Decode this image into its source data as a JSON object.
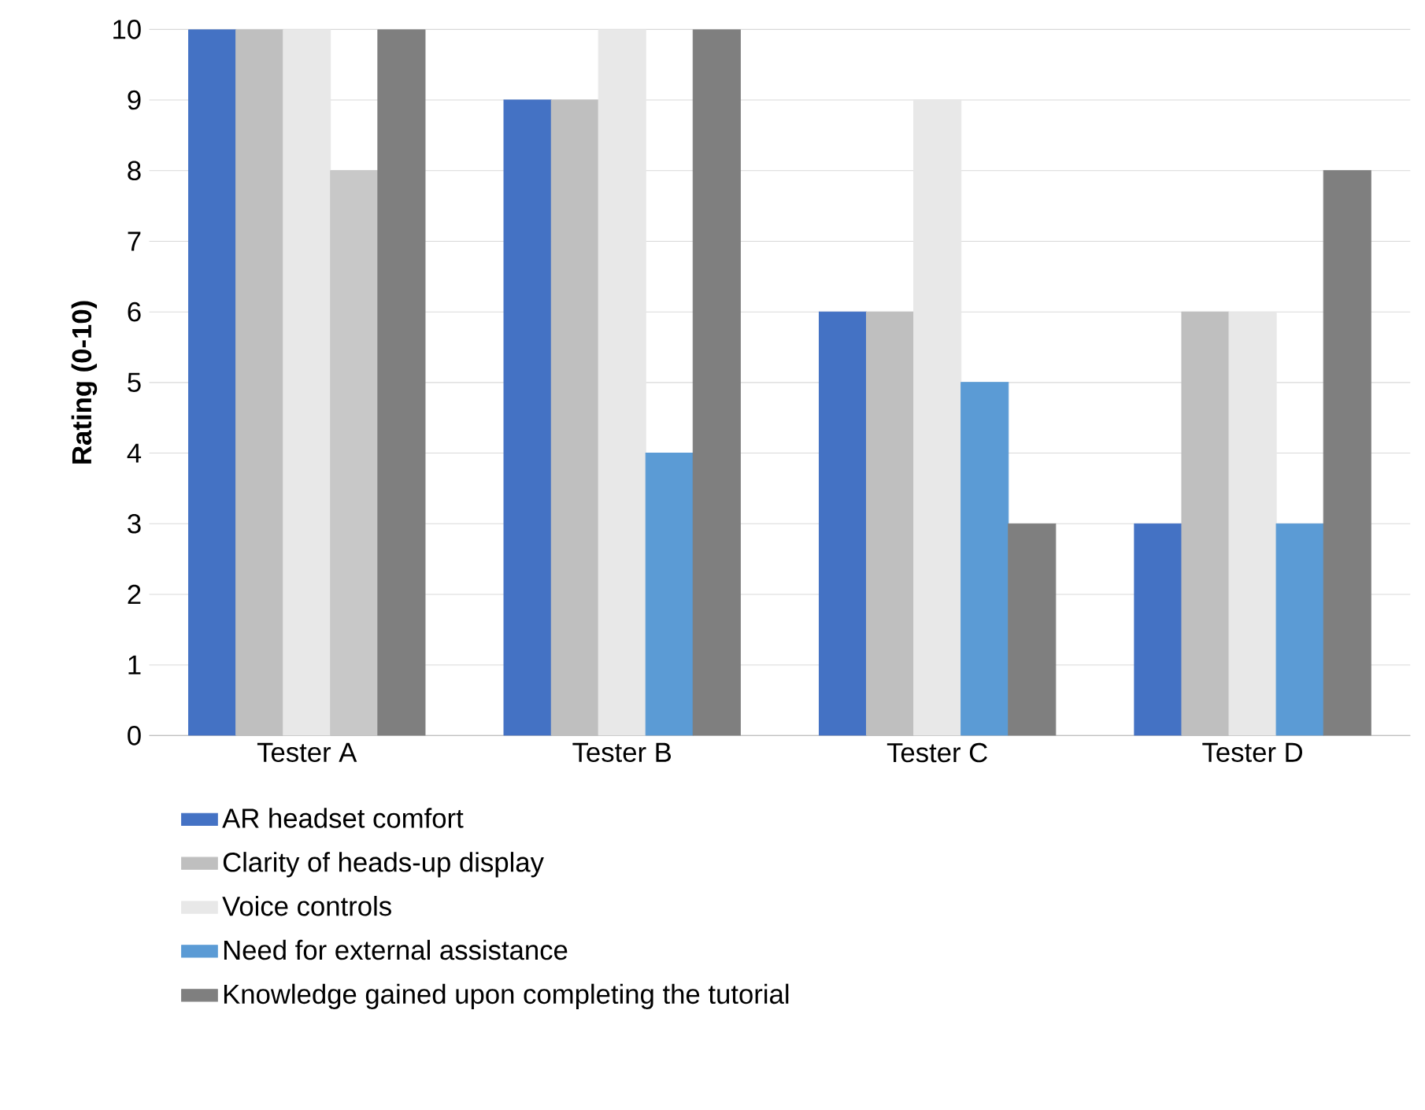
{
  "chart_data": {
    "type": "bar",
    "ylabel": "Rating (0-10)",
    "categories": [
      "Tester A",
      "Tester B",
      "Tester C",
      "Tester D"
    ],
    "series": [
      {
        "name": "AR headset comfort",
        "color": "#4472c4",
        "values": [
          10,
          9,
          6,
          3
        ]
      },
      {
        "name": "Clarity of heads-up display",
        "color": "#bfbfbf",
        "values": [
          10,
          9,
          6,
          6
        ]
      },
      {
        "name": "Voice controls",
        "color": "#e8e8e8",
        "values": [
          10,
          10,
          9,
          6
        ]
      },
      {
        "name": "Need for external assistance",
        "color": "#5b9bd5",
        "colors": [
          "#c8c8c8",
          "#5b9bd5",
          "#5b9bd5",
          "#5b9bd5"
        ],
        "values": [
          8,
          4,
          5,
          3
        ]
      },
      {
        "name": "Knowledge gained upon completing the tutorial",
        "color": "#7f7f7f",
        "values": [
          10,
          10,
          3,
          8
        ]
      }
    ],
    "ylim": [
      0,
      10
    ],
    "yticks": [
      0,
      1,
      2,
      3,
      4,
      5,
      6,
      7,
      8,
      9,
      10
    ],
    "grid": "y",
    "legend": "bottom"
  }
}
